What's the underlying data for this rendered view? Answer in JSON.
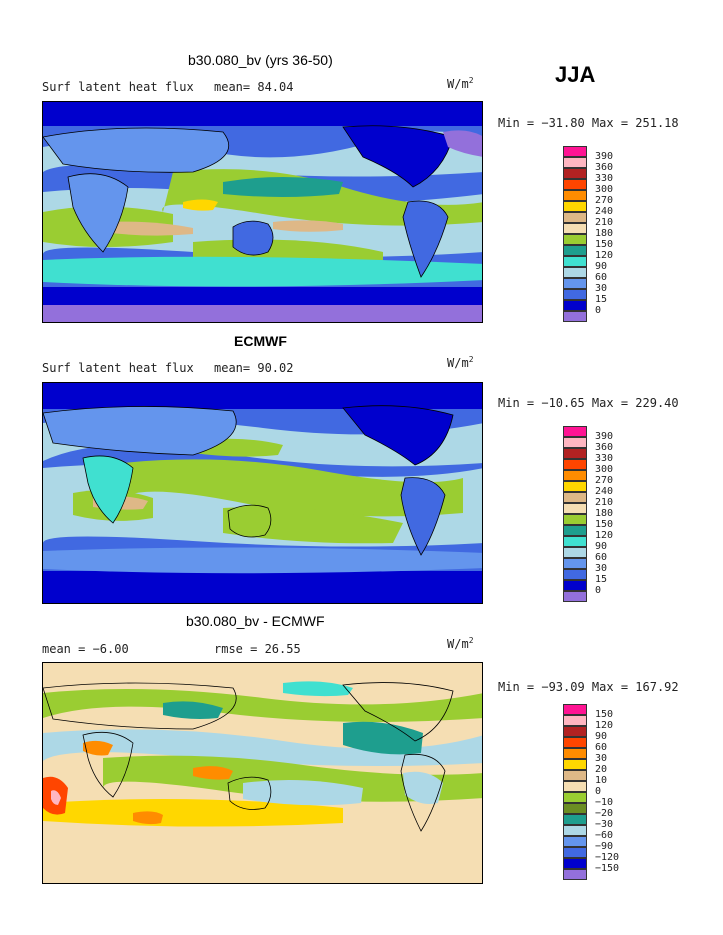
{
  "season": "JJA",
  "units": {
    "base": "W/m",
    "exp": "2"
  },
  "panels": [
    {
      "title": "b30.080_bv (yrs 36-50)",
      "left_label": "Surf latent heat flux",
      "mid_label": "mean=  84.04",
      "minmax": "Min = −31.80 Max = 251.18",
      "levels": [
        "390",
        "360",
        "330",
        "300",
        "270",
        "240",
        "210",
        "180",
        "150",
        "120",
        "90",
        "60",
        "30",
        "15",
        "0"
      ]
    },
    {
      "title": "ECMWF",
      "left_label": "Surf latent heat flux",
      "mid_label": "mean=  90.02",
      "minmax": "Min = −10.65 Max = 229.40",
      "levels": [
        "390",
        "360",
        "330",
        "300",
        "270",
        "240",
        "210",
        "180",
        "150",
        "120",
        "90",
        "60",
        "30",
        "15",
        "0"
      ]
    },
    {
      "title": "b30.080_bv - ECMWF",
      "left_label": "mean =  −6.00",
      "mid_label": "rmse =  26.55",
      "minmax": "Min = −93.09 Max = 167.92",
      "levels": [
        "150",
        "120",
        "90",
        "60",
        "30",
        "20",
        "10",
        "0",
        "−10",
        "−20",
        "−30",
        "−60",
        "−90",
        "−120",
        "−150"
      ]
    }
  ],
  "colors": {
    "abs_scale": [
      "#ff1493",
      "#ffb6c1",
      "#b22222",
      "#ff4500",
      "#ff8c00",
      "#ffd700",
      "#deb887",
      "#f5deb3",
      "#9acd32",
      "#1e9e8e",
      "#40e0d0",
      "#add8e6",
      "#6495ed",
      "#4169e1",
      "#0000cd",
      "#9370db"
    ],
    "diff_scale": [
      "#ff1493",
      "#ffb6c1",
      "#b22222",
      "#ff4500",
      "#ff8c00",
      "#ffd700",
      "#deb887",
      "#f5deb3",
      "#9acd32",
      "#6b8e23",
      "#1e9e8e",
      "#add8e6",
      "#6495ed",
      "#4169e1",
      "#0000cd",
      "#9370db"
    ]
  }
}
